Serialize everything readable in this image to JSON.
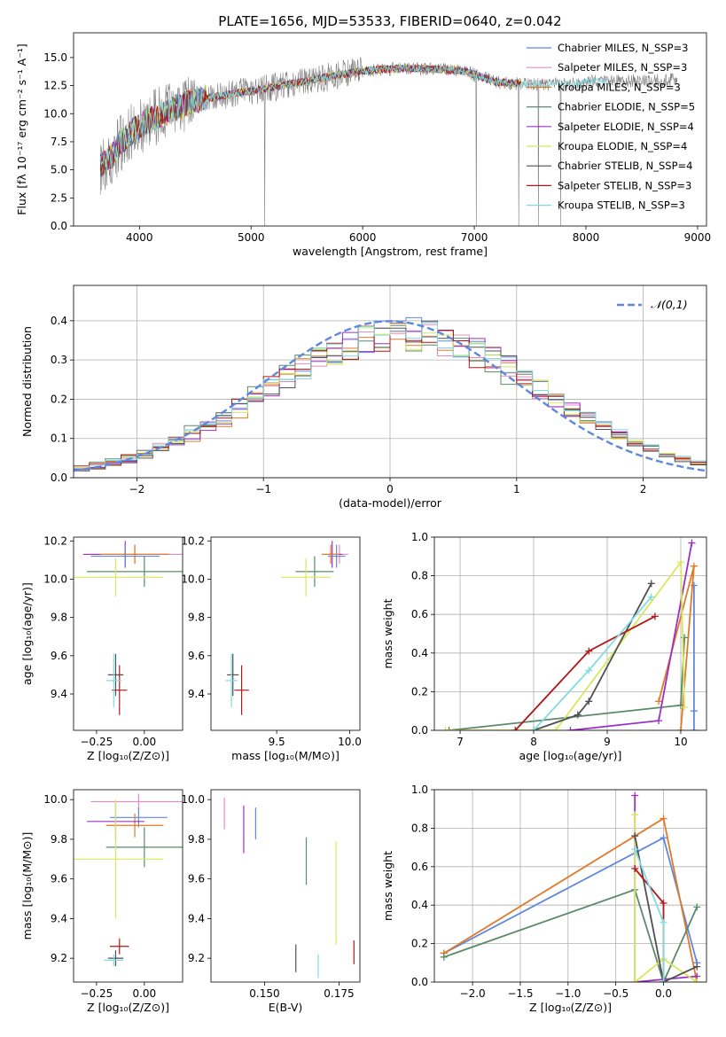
{
  "figure_title": "PLATE=1656, MJD=53533, FIBERID=0640, z=0.042",
  "chart_data": [
    {
      "id": "spectrum",
      "type": "line",
      "xlabel": "wavelength [Angstrom, rest frame]",
      "ylabel": "Flux [fλ 10⁻¹⁷ erg cm⁻² s⁻¹ A⁻¹]",
      "xlim": [
        3410,
        9080
      ],
      "ylim": [
        0,
        17.2
      ],
      "xticks": [
        4000,
        5000,
        6000,
        7000,
        8000,
        9000
      ],
      "yticks": [
        0.0,
        2.5,
        5.0,
        7.5,
        10.0,
        12.5,
        15.0
      ],
      "grid": false,
      "legend_position": "upper right",
      "data_envelope": {
        "x": [
          3650,
          3750,
          3850,
          3950,
          4100,
          4300,
          4500,
          4800,
          5100,
          5400,
          5700,
          6000,
          6300,
          6600,
          6900,
          7200,
          7500,
          7800,
          8100,
          8400,
          8700,
          8820
        ],
        "y": [
          5.4,
          6.2,
          7.6,
          8.6,
          9.5,
          10.4,
          11.2,
          11.7,
          12.2,
          12.7,
          13.3,
          13.8,
          14.0,
          14.0,
          13.8,
          12.8,
          12.6,
          12.6,
          12.9,
          12.9,
          13.0,
          13.0
        ]
      },
      "series": [
        {
          "name": "Chabrier MILES, N_SSP=3",
          "color": "#6088dd"
        },
        {
          "name": "Salpeter MILES, N_SSP=3",
          "color": "#e88ac2"
        },
        {
          "name": "Kroupa MILES, N_SSP=3",
          "color": "#e07a28"
        },
        {
          "name": "Chabrier ELODIE, N_SSP=5",
          "color": "#5a8a6a"
        },
        {
          "name": "Salpeter ELODIE, N_SSP=4",
          "color": "#9a30c8"
        },
        {
          "name": "Kroupa ELODIE, N_SSP=4",
          "color": "#d8e85a"
        },
        {
          "name": "Chabrier STELIB, N_SSP=4",
          "color": "#505050"
        },
        {
          "name": "Salpeter STELIB, N_SSP=3",
          "color": "#b01818"
        },
        {
          "name": "Kroupa STELIB, N_SSP=3",
          "color": "#80dce0"
        }
      ]
    },
    {
      "id": "residuals",
      "type": "line",
      "xlabel": "(data-model)/error",
      "ylabel": "Normed distribution",
      "xlim": [
        -2.5,
        2.5
      ],
      "ylim": [
        0,
        0.49
      ],
      "xticks": [
        -2,
        -1,
        0,
        1,
        2
      ],
      "yticks": [
        0.0,
        0.1,
        0.2,
        0.3,
        0.4
      ],
      "grid": true,
      "legend_position": "upper right",
      "reference_curve": {
        "name": "𝒩(0,1)",
        "mean": 0,
        "sigma": 1,
        "color": "#6088dd"
      },
      "histogram_bin_width": 0.125,
      "series_sigma": [
        1.08,
        1.1,
        1.06,
        1.12,
        1.07,
        1.09,
        1.05,
        1.11,
        1.1
      ],
      "series_mean": [
        0.12,
        0.1,
        0.15,
        0.08,
        0.13,
        0.11,
        0.14,
        0.09,
        0.12
      ]
    },
    {
      "id": "age_vs_Z",
      "type": "scatter",
      "xlabel": "Z [log₁₀(Z/Z⊙)]",
      "ylabel": "age  [log₁₀(age/yr)]",
      "xlim": [
        -0.37,
        0.2
      ],
      "ylim": [
        9.21,
        10.22
      ],
      "xticks": [
        -0.25,
        0.0
      ],
      "xticklabels": [
        "−0.25",
        "0.00"
      ],
      "yticks": [
        9.4,
        9.6,
        9.8,
        10.0,
        10.2
      ],
      "grid": false,
      "points": [
        {
          "x": -0.05,
          "y": 10.13,
          "xerr": 0.25,
          "yerr": 0.05,
          "color": "#e88ac2"
        },
        {
          "x": -0.1,
          "y": 10.13,
          "xerr": 0.22,
          "yerr": 0.07,
          "color": "#9a30c8"
        },
        {
          "x": -0.1,
          "y": 10.12,
          "xerr": 0.18,
          "yerr": 0.06,
          "color": "#6088dd"
        },
        {
          "x": -0.05,
          "y": 10.13,
          "xerr": 0.18,
          "yerr": 0.05,
          "color": "#e07a28"
        },
        {
          "x": 0.0,
          "y": 10.04,
          "xerr": 0.3,
          "yerr": 0.08,
          "color": "#5a8a6a"
        },
        {
          "x": -0.15,
          "y": 10.01,
          "xerr": 0.25,
          "yerr": 0.1,
          "color": "#d8e85a"
        },
        {
          "x": -0.15,
          "y": 9.5,
          "xerr": 0.04,
          "yerr": 0.11,
          "color": "#505050"
        },
        {
          "x": -0.13,
          "y": 9.42,
          "xerr": 0.04,
          "yerr": 0.13,
          "color": "#b01818"
        },
        {
          "x": -0.16,
          "y": 9.47,
          "xerr": 0.04,
          "yerr": 0.14,
          "color": "#80dce0"
        }
      ]
    },
    {
      "id": "age_vs_mass",
      "type": "scatter",
      "xlabel": "mass [log₁₀(M/M⊙)]",
      "ylabel": "",
      "xlim": [
        9.05,
        10.07
      ],
      "ylim": [
        9.21,
        10.22
      ],
      "xticks": [
        9.5,
        10.0
      ],
      "yticks": [
        9.4,
        9.6,
        9.8,
        10.0,
        10.2
      ],
      "grid": false,
      "points": [
        {
          "x": 9.93,
          "y": 10.13,
          "xerr": 0.06,
          "yerr": 0.05,
          "color": "#e88ac2"
        },
        {
          "x": 9.88,
          "y": 10.13,
          "xerr": 0.07,
          "yerr": 0.07,
          "color": "#9a30c8"
        },
        {
          "x": 9.91,
          "y": 10.12,
          "xerr": 0.06,
          "yerr": 0.06,
          "color": "#6088dd"
        },
        {
          "x": 9.87,
          "y": 10.13,
          "xerr": 0.06,
          "yerr": 0.05,
          "color": "#e07a28"
        },
        {
          "x": 9.76,
          "y": 10.04,
          "xerr": 0.13,
          "yerr": 0.08,
          "color": "#5a8a6a"
        },
        {
          "x": 9.7,
          "y": 10.01,
          "xerr": 0.17,
          "yerr": 0.1,
          "color": "#d8e85a"
        },
        {
          "x": 9.2,
          "y": 9.5,
          "xerr": 0.04,
          "yerr": 0.11,
          "color": "#505050"
        },
        {
          "x": 9.26,
          "y": 9.42,
          "xerr": 0.05,
          "yerr": 0.13,
          "color": "#b01818"
        },
        {
          "x": 9.19,
          "y": 9.47,
          "xerr": 0.04,
          "yerr": 0.14,
          "color": "#80dce0"
        }
      ]
    },
    {
      "id": "weight_vs_age",
      "type": "line",
      "xlabel": "age  [log₁₀(age/yr)]",
      "ylabel": "mass weight",
      "xlim": [
        6.65,
        10.35
      ],
      "ylim": [
        0,
        1.0
      ],
      "xticks": [
        7,
        8,
        9,
        10
      ],
      "yticks": [
        0.0,
        0.2,
        0.4,
        0.6,
        0.8,
        1.0
      ],
      "grid": true,
      "series": [
        {
          "color": "#6088dd",
          "x": [
            10.18,
            10.18,
            10.18
          ],
          "y": [
            0.1,
            0.75,
            0.0
          ]
        },
        {
          "color": "#e07a28",
          "x": [
            9.7,
            10.18,
            10.0
          ],
          "y": [
            0.15,
            0.85,
            0.0
          ]
        },
        {
          "color": "#5a8a6a",
          "x": [
            6.85,
            10.0,
            10.05
          ],
          "y": [
            0.0,
            0.13,
            0.48
          ]
        },
        {
          "color": "#9a30c8",
          "x": [
            8.5,
            9.7,
            10.15
          ],
          "y": [
            0.0,
            0.05,
            0.97
          ]
        },
        {
          "color": "#d8e85a",
          "x": [
            6.8,
            8.3,
            10.0,
            10.05
          ],
          "y": [
            0.0,
            0.0,
            0.87,
            0.12
          ]
        },
        {
          "color": "#505050",
          "x": [
            8.0,
            8.6,
            8.75,
            9.6
          ],
          "y": [
            0.0,
            0.08,
            0.15,
            0.76
          ]
        },
        {
          "color": "#b01818",
          "x": [
            7.75,
            8.75,
            9.65
          ],
          "y": [
            0.0,
            0.41,
            0.59
          ]
        },
        {
          "color": "#80dce0",
          "x": [
            8.0,
            8.75,
            9.6
          ],
          "y": [
            0.0,
            0.31,
            0.69
          ]
        }
      ]
    },
    {
      "id": "mass_vs_Z",
      "type": "scatter",
      "xlabel": "Z [log₁₀(Z/Z⊙)]",
      "ylabel": "mass [log₁₀(M/M⊙)]",
      "xlim": [
        -0.37,
        0.2
      ],
      "ylim": [
        9.08,
        10.05
      ],
      "xticks": [
        -0.25,
        0.0
      ],
      "xticklabels": [
        "−0.25",
        "0.00"
      ],
      "yticks": [
        9.2,
        9.4,
        9.6,
        9.8,
        10.0
      ],
      "grid": false,
      "points": [
        {
          "x": -0.03,
          "y": 9.99,
          "xerr": 0.25,
          "yerr": 0.04,
          "color": "#e88ac2"
        },
        {
          "x": -0.03,
          "y": 9.91,
          "xerr": 0.15,
          "yerr": 0.05,
          "color": "#6088dd"
        },
        {
          "x": -0.05,
          "y": 9.87,
          "xerr": 0.15,
          "yerr": 0.06,
          "color": "#e07a28"
        },
        {
          "x": -0.15,
          "y": 9.89,
          "xerr": 0.15,
          "yerr": 0.1,
          "color": "#9a30c8"
        },
        {
          "x": 0.0,
          "y": 9.76,
          "xerr": 0.2,
          "yerr": 0.1,
          "color": "#5a8a6a"
        },
        {
          "x": -0.15,
          "y": 9.7,
          "xerr": 0.25,
          "yerr": 0.3,
          "color": "#d8e85a"
        },
        {
          "x": -0.15,
          "y": 9.2,
          "xerr": 0.04,
          "yerr": 0.04,
          "color": "#505050"
        },
        {
          "x": -0.13,
          "y": 9.26,
          "xerr": 0.05,
          "yerr": 0.04,
          "color": "#b01818"
        },
        {
          "x": -0.16,
          "y": 9.19,
          "xerr": 0.05,
          "yerr": 0.03,
          "color": "#80dce0"
        }
      ]
    },
    {
      "id": "mass_vs_ebv",
      "type": "scatter",
      "xlabel": "E(B-V)",
      "ylabel": "",
      "xlim": [
        0.132,
        0.182
      ],
      "ylim": [
        9.08,
        10.05
      ],
      "xticks": [
        0.15,
        0.175
      ],
      "xticklabels": [
        "0.150",
        "0.175"
      ],
      "yticks": [
        9.2,
        9.4,
        9.6,
        9.8,
        10.0
      ],
      "grid": false,
      "points": [
        {
          "x": 0.1365,
          "y": 9.93,
          "xerr": 0,
          "yerr": 0.08,
          "color": "#e88ac2"
        },
        {
          "x": 0.143,
          "y": 9.85,
          "xerr": 0,
          "yerr": 0.12,
          "color": "#9a30c8"
        },
        {
          "x": 0.147,
          "y": 9.88,
          "xerr": 0,
          "yerr": 0.08,
          "color": "#6088dd"
        },
        {
          "x": 0.164,
          "y": 9.69,
          "xerr": 0,
          "yerr": 0.12,
          "color": "#5a8a6a"
        },
        {
          "x": 0.174,
          "y": 9.53,
          "xerr": 0,
          "yerr": 0.26,
          "color": "#d8e85a"
        },
        {
          "x": 0.1605,
          "y": 9.2,
          "xerr": 0,
          "yerr": 0.07,
          "color": "#505050"
        },
        {
          "x": 0.168,
          "y": 9.16,
          "xerr": 0,
          "yerr": 0.06,
          "color": "#80dce0"
        },
        {
          "x": 0.18,
          "y": 9.23,
          "xerr": 0,
          "yerr": 0.06,
          "color": "#b01818"
        }
      ]
    },
    {
      "id": "weight_vs_Z",
      "type": "line",
      "xlabel": "Z [log₁₀(Z/Z⊙)]",
      "ylabel": "mass weight",
      "xlim": [
        -2.4,
        0.45
      ],
      "ylim": [
        0,
        1.0
      ],
      "xticks": [
        -2.0,
        -1.5,
        -1.0,
        -0.5,
        0.0
      ],
      "xticklabels": [
        "−2.0",
        "−1.5",
        "−1.0",
        "−0.5",
        "0.0"
      ],
      "yticks": [
        0.0,
        0.2,
        0.4,
        0.6,
        0.8,
        1.0
      ],
      "grid": true,
      "series": [
        {
          "color": "#6088dd",
          "x": [
            -2.3,
            0.0,
            0.35
          ],
          "y": [
            0.15,
            0.75,
            0.1
          ]
        },
        {
          "color": "#e07a28",
          "x": [
            -2.3,
            0.0,
            0.35
          ],
          "y": [
            0.15,
            0.85,
            0.0
          ]
        },
        {
          "color": "#5a8a6a",
          "x": [
            -2.3,
            -0.3,
            0.0,
            0.35
          ],
          "y": [
            0.13,
            0.48,
            0.0,
            0.39
          ]
        },
        {
          "color": "#9a30c8",
          "x": [
            -0.3,
            -0.3,
            0.35
          ],
          "y": [
            0.97,
            0.0,
            0.03
          ]
        },
        {
          "color": "#d8e85a",
          "x": [
            -0.3,
            -0.3,
            0.0,
            0.35
          ],
          "y": [
            0.87,
            0.0,
            0.12,
            0.0
          ]
        },
        {
          "color": "#505050",
          "x": [
            -0.3,
            0.0,
            0.35
          ],
          "y": [
            0.76,
            0.0,
            0.08
          ]
        },
        {
          "color": "#b01818",
          "x": [
            -0.3,
            0.0,
            0.0
          ],
          "y": [
            0.59,
            0.41,
            0.0
          ]
        },
        {
          "color": "#80dce0",
          "x": [
            -0.3,
            0.0,
            0.0
          ],
          "y": [
            0.69,
            0.31,
            0.0
          ]
        }
      ]
    }
  ]
}
